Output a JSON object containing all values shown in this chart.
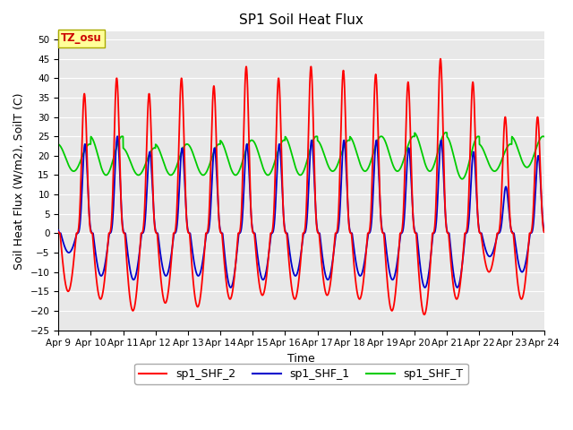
{
  "title": "SP1 Soil Heat Flux",
  "xlabel": "Time",
  "ylabel": "Soil Heat Flux (W/m2), SoilT (C)",
  "ylim": [
    -25,
    52
  ],
  "yticks": [
    -25,
    -20,
    -15,
    -10,
    -5,
    0,
    5,
    10,
    15,
    20,
    25,
    30,
    35,
    40,
    45,
    50
  ],
  "xlim_days": [
    9,
    24
  ],
  "xtick_labels": [
    "Apr 9",
    "Apr 10",
    "Apr 11",
    "Apr 12",
    "Apr 13",
    "Apr 14",
    "Apr 15",
    "Apr 16",
    "Apr 17",
    "Apr 18",
    "Apr 19",
    "Apr 20",
    "Apr 21",
    "Apr 22",
    "Apr 23",
    "Apr 24"
  ],
  "xtick_positions": [
    9,
    10,
    11,
    12,
    13,
    14,
    15,
    16,
    17,
    18,
    19,
    20,
    21,
    22,
    23,
    24
  ],
  "color_shf2": "#ff0000",
  "color_shf1": "#0000cc",
  "color_shft": "#00cc00",
  "legend_labels": [
    "sp1_SHF_2",
    "sp1_SHF_1",
    "sp1_SHF_T"
  ],
  "annotation_text": "TZ_osu",
  "annotation_color": "#cc0000",
  "annotation_bg": "#ffff99",
  "background_color": "#e8e8e8",
  "grid_color": "#ffffff",
  "title_fontsize": 11,
  "axis_fontsize": 9,
  "tick_fontsize": 7.5,
  "legend_fontsize": 9,
  "peaks2": [
    36,
    40,
    36,
    40,
    38,
    43,
    40,
    43,
    42,
    41,
    39,
    45,
    39,
    30,
    30
  ],
  "troughs2": [
    -15,
    -17,
    -20,
    -18,
    -19,
    -17,
    -16,
    -17,
    -16,
    -17,
    -20,
    -21,
    -17,
    -10,
    -17
  ],
  "peaks1": [
    23,
    25,
    21,
    22,
    22,
    23,
    23,
    24,
    24,
    24,
    22,
    24,
    21,
    12,
    20
  ],
  "troughs1": [
    -5,
    -11,
    -12,
    -11,
    -11,
    -14,
    -12,
    -11,
    -12,
    -11,
    -12,
    -14,
    -14,
    -6,
    -10
  ],
  "peaks_t": [
    23,
    25,
    22,
    23,
    23,
    24,
    24,
    25,
    24,
    25,
    25,
    26,
    25,
    23,
    25
  ],
  "troughs_t": [
    16,
    15,
    15,
    15,
    15,
    15,
    15,
    15,
    16,
    16,
    16,
    16,
    14,
    16,
    17
  ]
}
